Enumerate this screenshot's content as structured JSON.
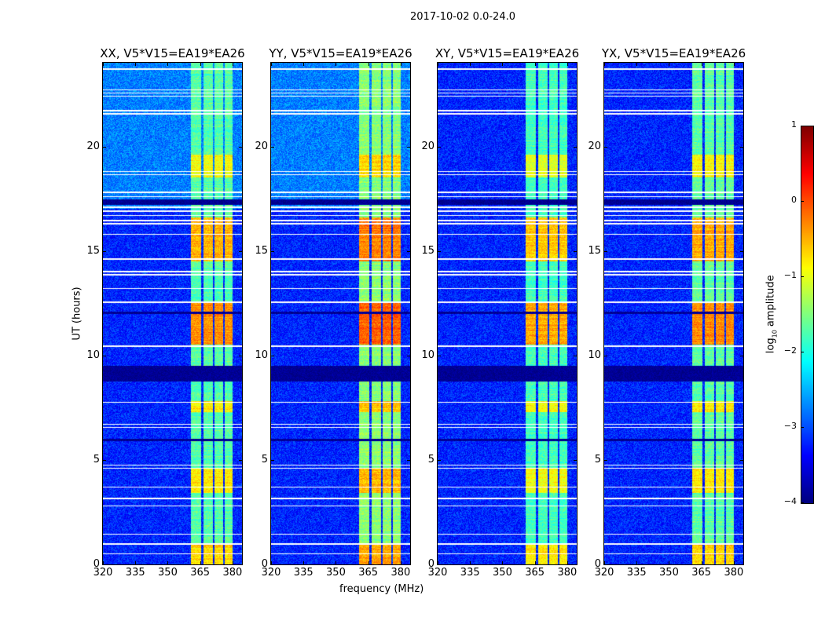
{
  "chart_data": {
    "type": "heatmap",
    "title": "2017-10-02 0.0-24.0",
    "xlabel": "frequency (MHz)",
    "ylabel": "UT (hours)",
    "xlim": [
      320,
      384.4
    ],
    "ylim": [
      0,
      24
    ],
    "xticks": [
      "320",
      "335",
      "350",
      "365",
      "380"
    ],
    "xtick_values": [
      320,
      335,
      350,
      365,
      380
    ],
    "yticks": [
      "0",
      "5",
      "10",
      "15",
      "20"
    ],
    "ytick_values": [
      0,
      5,
      10,
      15,
      20
    ],
    "panels": [
      {
        "title": "XX, V5*V15=EA19*EA26",
        "gain": 0.0,
        "upper_bg": -2.75
      },
      {
        "title": "YY, V5*V15=EA19*EA26",
        "gain": 0.25,
        "upper_bg": -2.75
      },
      {
        "title": "XY, V5*V15=EA19*EA26",
        "gain": -0.1,
        "upper_bg": -3.2
      },
      {
        "title": "YX, V5*V15=EA19*EA26",
        "gain": 0.05,
        "upper_bg": -3.2
      }
    ],
    "background_log10": -3.2,
    "subbands_mhz": [
      [
        360.8,
        365.6
      ],
      [
        366.4,
        370.8
      ],
      [
        371.6,
        375.6
      ],
      [
        376.4,
        380.2
      ]
    ],
    "band_base_log10": -1.7,
    "strong_periods_hours": [
      [
        0,
        1.0,
        -0.7
      ],
      [
        3.4,
        4.6,
        -0.8
      ],
      [
        7.3,
        7.8,
        -0.8
      ],
      [
        10.5,
        12.5,
        -0.35
      ],
      [
        14.5,
        16.6,
        -0.5
      ],
      [
        18.5,
        19.6,
        -0.9
      ]
    ],
    "flagged_hours_white": [
      23.7,
      22.7,
      22.55,
      22.4,
      21.7,
      21.55,
      18.8,
      18.65,
      17.8,
      17.6,
      17.1,
      16.9,
      16.7,
      16.45,
      16.3,
      15.8,
      14.6,
      14.0,
      13.85,
      13.2,
      12.55,
      10.45,
      7.75,
      6.7,
      6.55,
      4.75,
      4.6,
      3.7,
      3.15,
      2.8,
      1.45,
      0.98,
      0.5
    ],
    "flagged_hours_dark": [
      [
        17.2,
        17.45
      ],
      [
        12.0,
        12.1
      ],
      [
        8.75,
        9.5
      ],
      [
        5.9,
        6.0
      ]
    ],
    "colorbar": {
      "label": "log10 amplitude",
      "label_main": "log",
      "label_sub": "10",
      "label_rest": " amplitude",
      "range": [
        -4,
        1
      ],
      "ticks": [
        "1",
        "0",
        "−1",
        "−2",
        "−3",
        "−4"
      ],
      "tick_values": [
        1,
        0,
        -1,
        -2,
        -3,
        -4
      ],
      "colormap": "jet"
    }
  }
}
